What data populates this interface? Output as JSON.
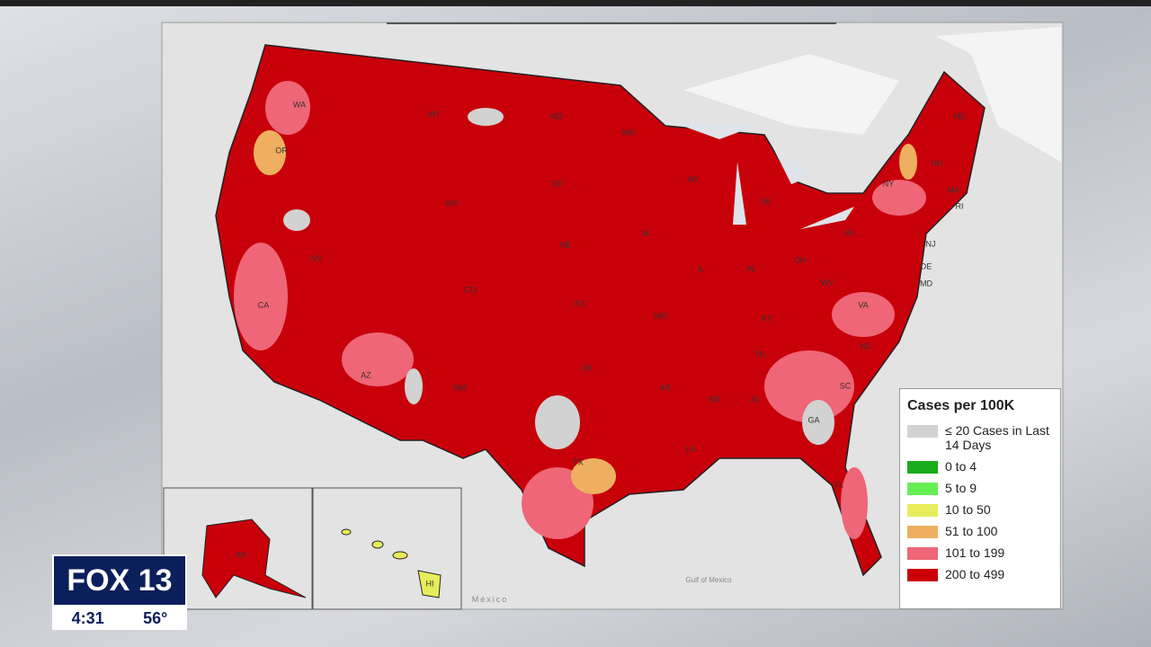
{
  "header": {
    "logo": "FOX 13",
    "time": "4:31",
    "temperature": "56°"
  },
  "map": {
    "legend": {
      "title": "Cases per 100K",
      "items": [
        {
          "label": "≤ 20 Cases in Last 14 Days",
          "color": "#d2d2d2"
        },
        {
          "label": "0 to 4",
          "color": "#1aab1a"
        },
        {
          "label": "5 to 9",
          "color": "#66ee55"
        },
        {
          "label": "10 to 50",
          "color": "#e8ec5a"
        },
        {
          "label": "51 to 100",
          "color": "#eeb060"
        },
        {
          "label": "101 to 199",
          "color": "#ee6677"
        },
        {
          "label": "200 to 499",
          "color": "#cc0008"
        }
      ]
    },
    "state_labels": [
      "WA",
      "OR",
      "CA",
      "NV",
      "MT",
      "WY",
      "CO",
      "AZ",
      "NM",
      "ND",
      "SD",
      "NE",
      "KS",
      "OK",
      "TX",
      "MN",
      "IA",
      "MO",
      "AR",
      "LA",
      "WI",
      "IL",
      "MI",
      "IN",
      "OH",
      "KY",
      "TN",
      "MS",
      "AL",
      "GA",
      "FL",
      "SC",
      "NC",
      "VA",
      "WV",
      "PA",
      "NY",
      "ME",
      "NH",
      "MA",
      "RI",
      "NJ",
      "DE",
      "MD",
      "AK",
      "HI"
    ],
    "place_labels": [
      "Gulf of Mexico",
      "México"
    ]
  }
}
